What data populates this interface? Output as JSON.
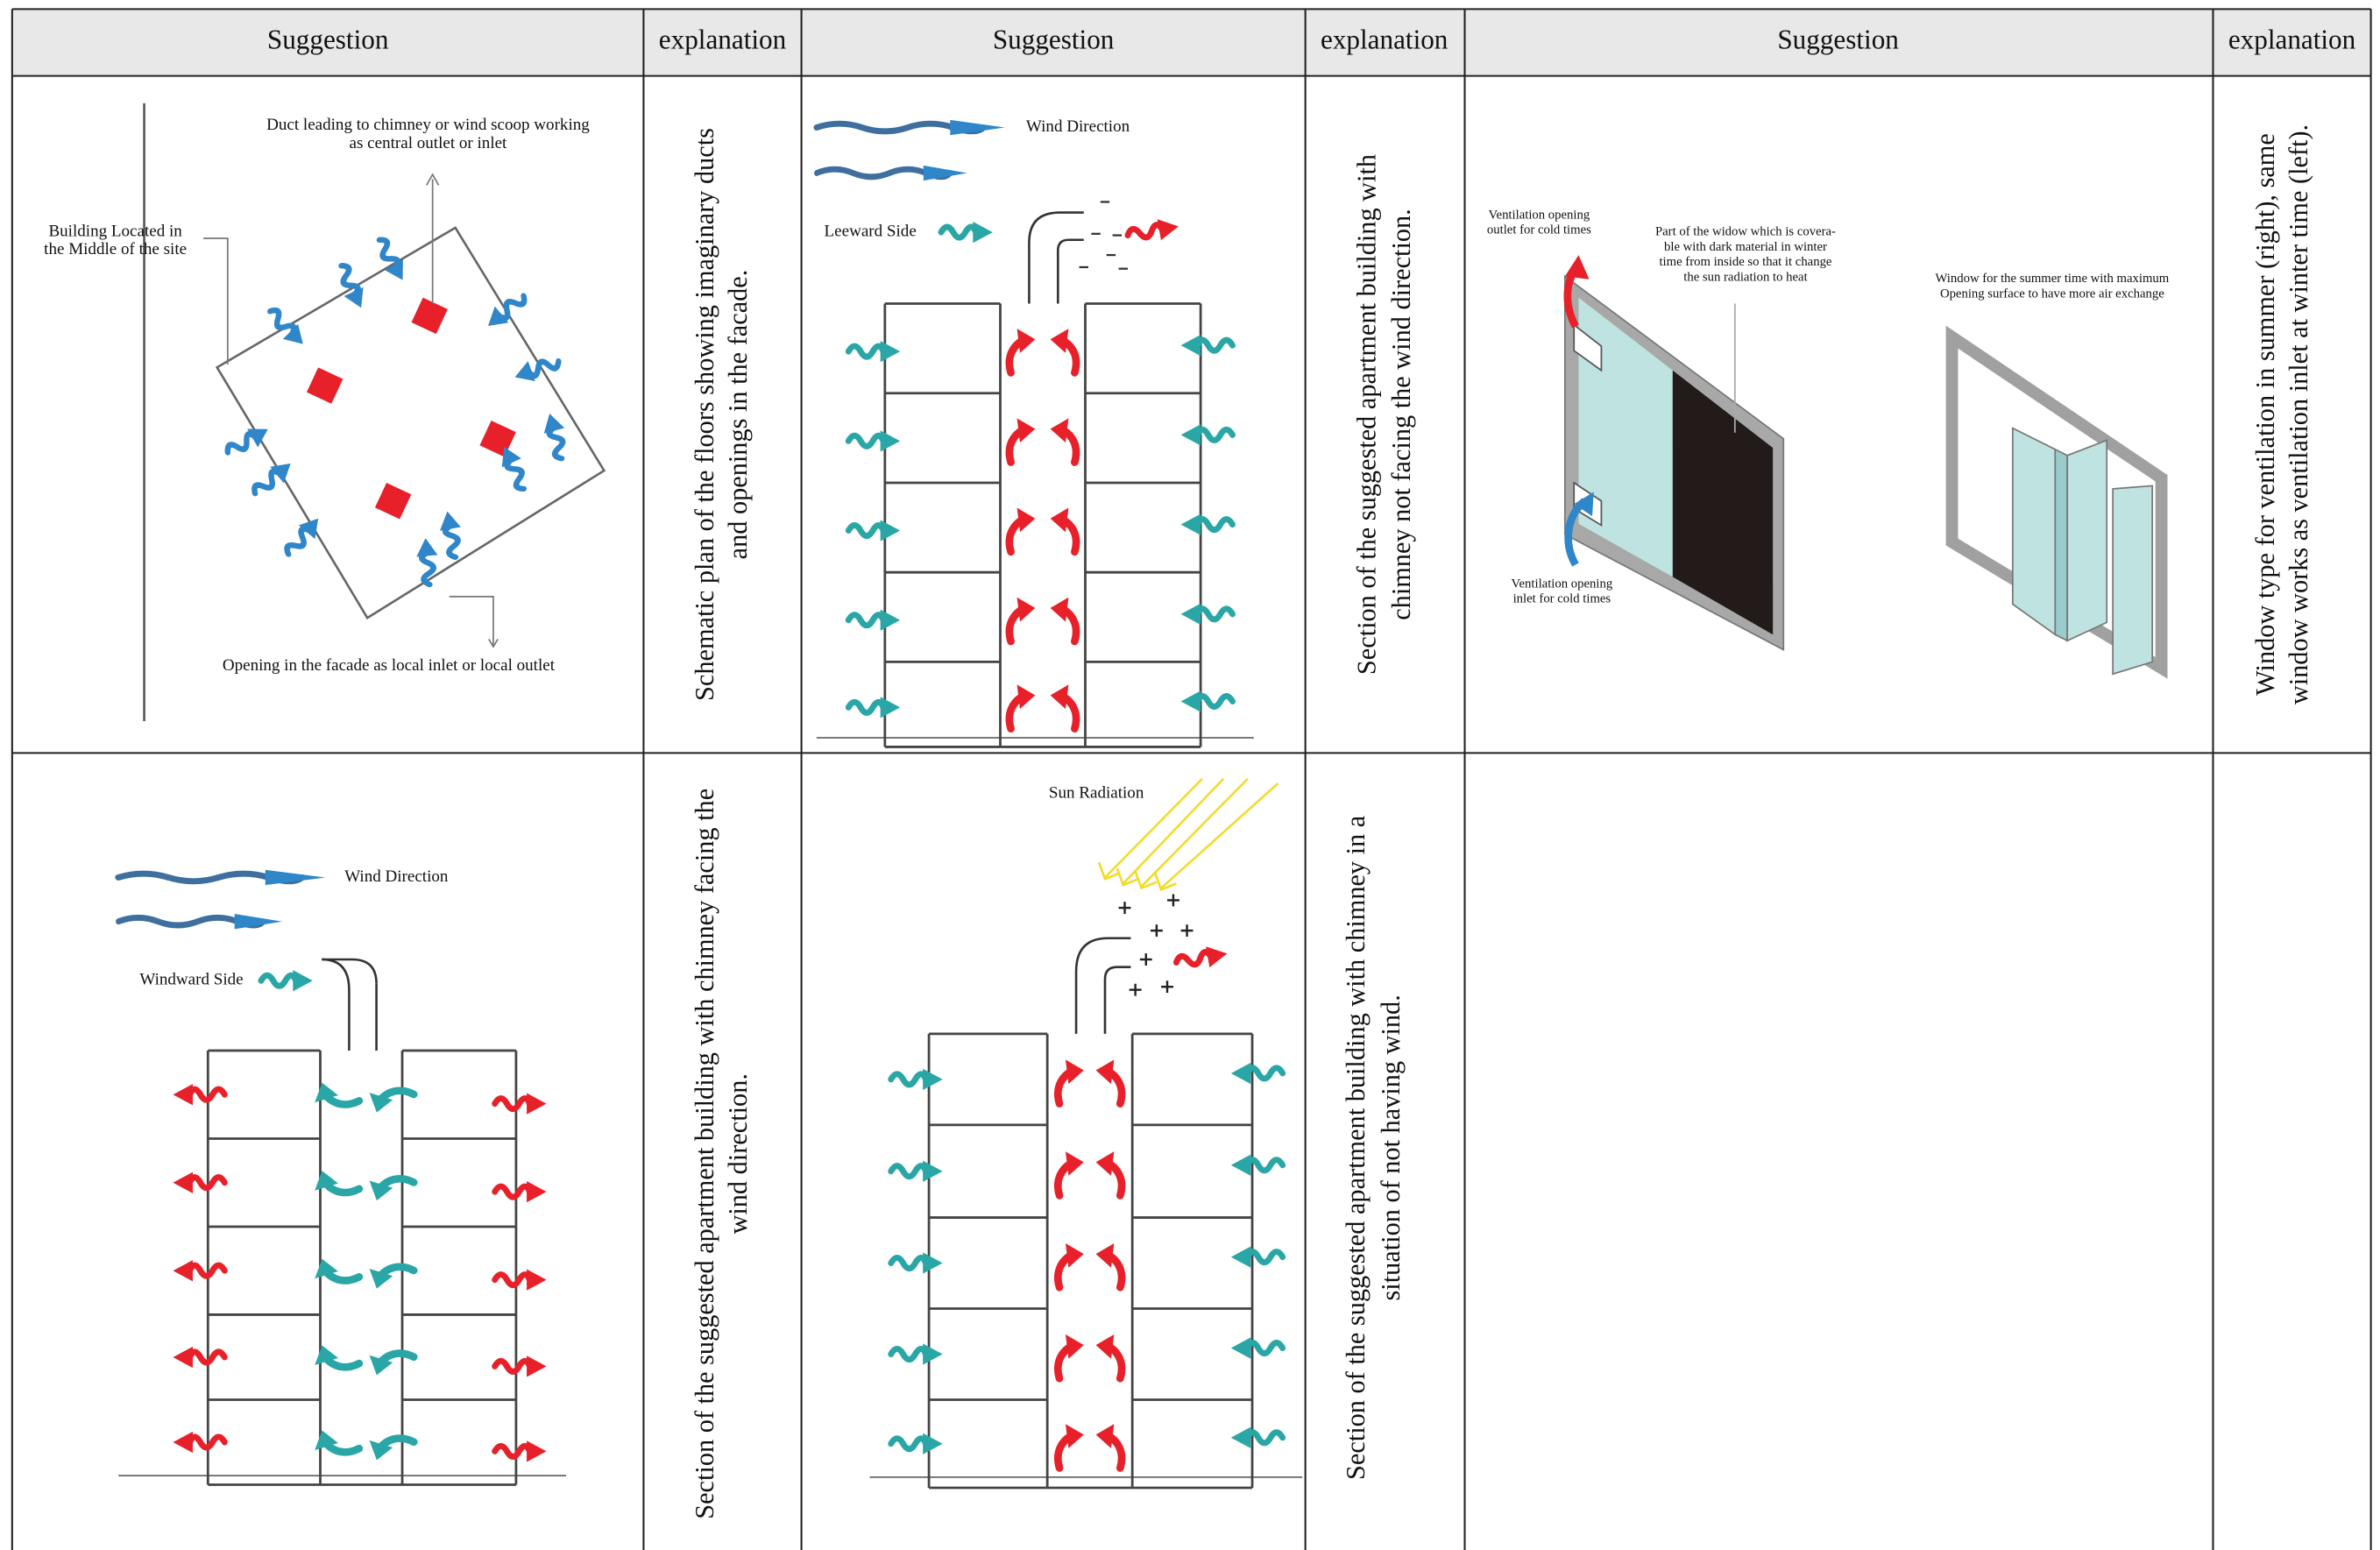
{
  "table": {
    "headers": [
      "Suggestion",
      "explanation",
      "Suggestion",
      "explanation",
      "Suggestion",
      "explanation"
    ],
    "rows": [
      [
        {
          "labels": [
            "Duct leading to chimney or wind scoop working",
            "as central outlet or inlet",
            "Building Located in",
            "the Middle of the site",
            "Opening in the facade as local inlet or local outlet"
          ]
        },
        {
          "lines": [
            "Schematic plan of the floors showing imaginary ducts",
            "and openings in the facade."
          ]
        },
        {
          "labels": [
            "Wind Direction",
            "Leeward Side"
          ]
        },
        {
          "lines": [
            "Section of the suggested apartment building with",
            "chimney not facing the wind direction."
          ]
        },
        {
          "labels": [
            "Ventilation opening",
            "outlet for cold times",
            "Part of the widow which is covera-",
            "ble with dark material in winter",
            "time from inside so that it change",
            "the sun radiation to heat",
            "Window for the summer time with maximum",
            "Opening surface to have more air exchange",
            "Ventilation opening",
            "inlet for cold times"
          ]
        },
        {
          "lines": [
            "Window type for ventilation in summer (right), same",
            "window works as ventilation inlet at winter time (left)."
          ]
        }
      ],
      [
        {
          "labels": [
            "Wind Direction",
            "Windward Side"
          ]
        },
        {
          "lines": [
            "Section of the suggested apartment building with chimney facing the",
            "wind direction."
          ]
        },
        {
          "labels": [
            "Sun Radiation"
          ]
        },
        {
          "lines": [
            "Section of the suggested apartment building with chimney in a",
            "situation of not having wind."
          ]
        }
      ]
    ]
  }
}
